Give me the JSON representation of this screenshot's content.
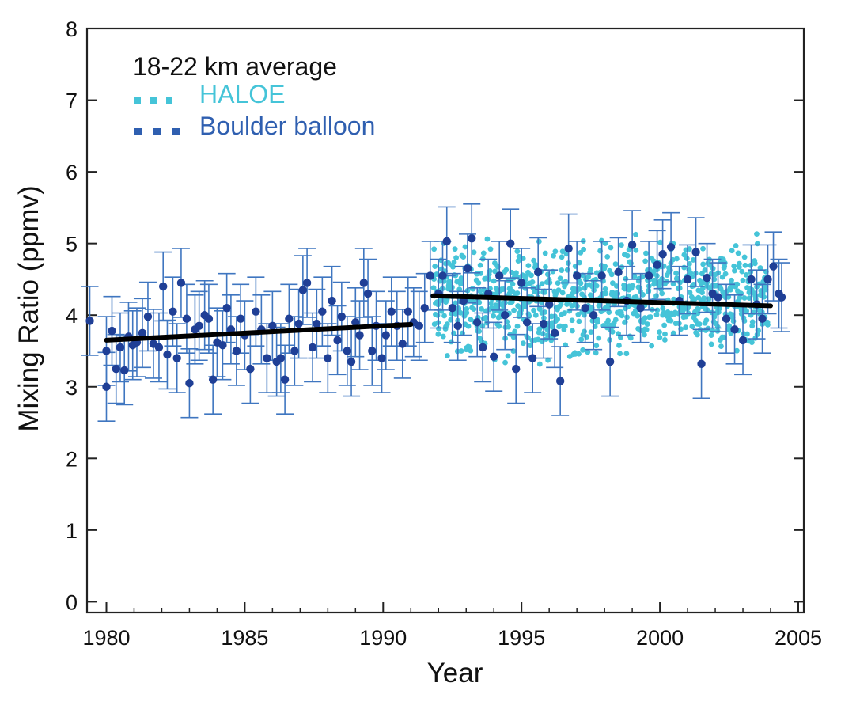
{
  "chart_data": {
    "type": "scatter",
    "title": "",
    "annotation": "18-22 km average",
    "xlabel": "Year",
    "ylabel": "Mixing Ratio (ppmv)",
    "xlim": [
      1979.3,
      2005.2
    ],
    "ylim": [
      -0.15,
      8
    ],
    "xticks": [
      1980,
      1985,
      1990,
      1995,
      2000,
      2005
    ],
    "yticks": [
      0,
      1,
      2,
      3,
      4,
      5,
      6,
      7,
      8
    ],
    "grid": false,
    "legend_position": "top-left",
    "colors": {
      "boulder": "#1f3f96",
      "errorbar": "#3f76c0",
      "haloe": "#45c4d8",
      "trend": "#000000"
    },
    "series": [
      {
        "name": "HALOE",
        "style": "dots",
        "x_range": [
          1991.8,
          2003.9
        ],
        "y_center": 4.22,
        "y_spread": 0.35,
        "count": 900
      },
      {
        "name": "Boulder balloon",
        "style": "points with error bars",
        "error_bar": 0.48,
        "points": [
          [
            1979.4,
            3.92
          ],
          [
            1980.0,
            3.5
          ],
          [
            1980.0,
            3.0
          ],
          [
            1980.2,
            3.78
          ],
          [
            1980.35,
            3.25
          ],
          [
            1980.5,
            3.55
          ],
          [
            1980.65,
            3.23
          ],
          [
            1980.8,
            3.7
          ],
          [
            1980.95,
            3.58
          ],
          [
            1981.1,
            3.62
          ],
          [
            1981.3,
            3.75
          ],
          [
            1981.5,
            3.98
          ],
          [
            1981.7,
            3.6
          ],
          [
            1981.9,
            3.55
          ],
          [
            1982.05,
            4.4
          ],
          [
            1982.2,
            3.45
          ],
          [
            1982.4,
            4.05
          ],
          [
            1982.55,
            3.4
          ],
          [
            1982.7,
            4.45
          ],
          [
            1982.9,
            3.95
          ],
          [
            1983.0,
            3.05
          ],
          [
            1983.2,
            3.8
          ],
          [
            1983.35,
            3.85
          ],
          [
            1983.55,
            4.0
          ],
          [
            1983.7,
            3.95
          ],
          [
            1983.85,
            3.1
          ],
          [
            1984.0,
            3.62
          ],
          [
            1984.2,
            3.58
          ],
          [
            1984.35,
            4.1
          ],
          [
            1984.5,
            3.8
          ],
          [
            1984.7,
            3.5
          ],
          [
            1984.85,
            3.95
          ],
          [
            1985.0,
            3.72
          ],
          [
            1985.2,
            3.25
          ],
          [
            1985.4,
            4.05
          ],
          [
            1985.6,
            3.8
          ],
          [
            1985.8,
            3.4
          ],
          [
            1986.0,
            3.85
          ],
          [
            1986.15,
            3.35
          ],
          [
            1986.3,
            3.4
          ],
          [
            1986.45,
            3.1
          ],
          [
            1986.6,
            3.95
          ],
          [
            1986.8,
            3.5
          ],
          [
            1986.95,
            3.88
          ],
          [
            1987.1,
            4.35
          ],
          [
            1987.25,
            4.45
          ],
          [
            1987.45,
            3.55
          ],
          [
            1987.6,
            3.88
          ],
          [
            1987.8,
            4.05
          ],
          [
            1988.0,
            3.4
          ],
          [
            1988.15,
            4.2
          ],
          [
            1988.35,
            3.65
          ],
          [
            1988.5,
            3.98
          ],
          [
            1988.7,
            3.5
          ],
          [
            1988.85,
            3.35
          ],
          [
            1989.0,
            3.9
          ],
          [
            1989.15,
            3.72
          ],
          [
            1989.3,
            4.45
          ],
          [
            1989.45,
            4.3
          ],
          [
            1989.6,
            3.5
          ],
          [
            1989.75,
            3.85
          ],
          [
            1989.95,
            3.4
          ],
          [
            1990.1,
            3.72
          ],
          [
            1990.3,
            4.05
          ],
          [
            1990.5,
            3.85
          ],
          [
            1990.7,
            3.6
          ],
          [
            1990.9,
            4.05
          ],
          [
            1991.1,
            3.9
          ],
          [
            1991.3,
            3.85
          ],
          [
            1991.5,
            4.1
          ],
          [
            1991.7,
            4.55
          ],
          [
            1992.0,
            4.3
          ],
          [
            1992.15,
            4.55
          ],
          [
            1992.3,
            5.03
          ],
          [
            1992.5,
            4.1
          ],
          [
            1992.7,
            3.85
          ],
          [
            1992.9,
            4.2
          ],
          [
            1993.05,
            4.65
          ],
          [
            1993.2,
            5.07
          ],
          [
            1993.4,
            3.9
          ],
          [
            1993.6,
            3.55
          ],
          [
            1993.8,
            4.3
          ],
          [
            1994.0,
            3.42
          ],
          [
            1994.2,
            4.55
          ],
          [
            1994.4,
            4.0
          ],
          [
            1994.6,
            5.0
          ],
          [
            1994.8,
            3.25
          ],
          [
            1995.0,
            4.45
          ],
          [
            1995.2,
            3.9
          ],
          [
            1995.4,
            3.4
          ],
          [
            1995.6,
            4.6
          ],
          [
            1995.8,
            3.88
          ],
          [
            1996.0,
            4.15
          ],
          [
            1996.2,
            3.75
          ],
          [
            1996.4,
            3.08
          ],
          [
            1996.7,
            4.93
          ],
          [
            1997.0,
            4.55
          ],
          [
            1997.3,
            4.1
          ],
          [
            1997.6,
            4.0
          ],
          [
            1997.9,
            4.55
          ],
          [
            1998.2,
            3.35
          ],
          [
            1998.5,
            4.6
          ],
          [
            1998.8,
            4.2
          ],
          [
            1999.0,
            4.98
          ],
          [
            1999.3,
            4.1
          ],
          [
            1999.6,
            4.55
          ],
          [
            1999.9,
            4.7
          ],
          [
            2000.1,
            4.85
          ],
          [
            2000.4,
            4.95
          ],
          [
            2000.7,
            4.2
          ],
          [
            2001.0,
            4.5
          ],
          [
            2001.3,
            4.88
          ],
          [
            2001.5,
            3.32
          ],
          [
            2001.7,
            4.52
          ],
          [
            2001.9,
            4.3
          ],
          [
            2002.1,
            4.25
          ],
          [
            2002.4,
            3.95
          ],
          [
            2002.7,
            3.8
          ],
          [
            2003.0,
            3.65
          ],
          [
            2003.3,
            4.5
          ],
          [
            2003.5,
            4.15
          ],
          [
            2003.7,
            3.95
          ],
          [
            2003.9,
            4.5
          ],
          [
            2004.1,
            4.68
          ],
          [
            2004.3,
            4.3
          ],
          [
            2004.4,
            4.25
          ]
        ]
      }
    ],
    "trend_lines": [
      {
        "x": [
          1980.0,
          1991.0
        ],
        "y": [
          3.65,
          3.87
        ]
      },
      {
        "x": [
          1991.8,
          2004.0
        ],
        "y": [
          4.27,
          4.13
        ]
      }
    ]
  }
}
